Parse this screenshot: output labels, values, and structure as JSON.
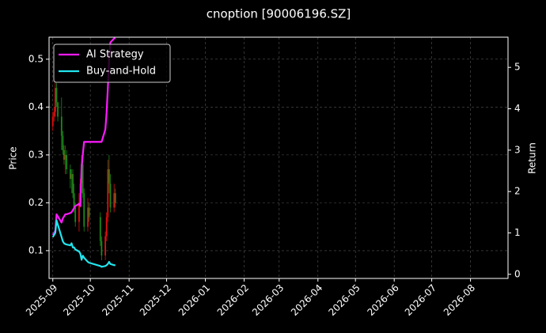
{
  "chart_data": {
    "type": "candlestick",
    "title": "cnoption [90006196.SZ]",
    "ylabel": "Price",
    "y2label": "Return",
    "x": [
      "2025-09-01",
      "2025-09-02",
      "2025-09-03",
      "2025-09-04",
      "2025-09-05",
      "2025-09-08",
      "2025-09-09",
      "2025-09-10",
      "2025-09-11",
      "2025-09-12",
      "2025-09-15",
      "2025-09-16",
      "2025-09-17",
      "2025-09-18",
      "2025-09-19",
      "2025-09-22",
      "2025-09-23",
      "2025-09-24",
      "2025-09-25",
      "2025-09-26",
      "2025-09-29",
      "2025-09-30",
      "2025-10-09",
      "2025-10-10",
      "2025-10-13",
      "2025-10-14",
      "2025-10-15",
      "2025-10-16",
      "2025-10-17",
      "2025-10-20",
      "2025-10-21"
    ],
    "open": [
      0.36,
      0.38,
      0.39,
      0.44,
      0.41,
      0.38,
      0.34,
      0.31,
      0.29,
      0.3,
      0.27,
      0.25,
      0.26,
      0.22,
      0.19,
      0.16,
      0.2,
      0.24,
      0.28,
      0.22,
      0.15,
      0.19,
      0.17,
      0.12,
      0.09,
      0.13,
      0.17,
      0.27,
      0.24,
      0.19,
      0.22
    ],
    "high": [
      0.39,
      0.4,
      0.46,
      0.45,
      0.41,
      0.42,
      0.35,
      0.32,
      0.32,
      0.31,
      0.28,
      0.27,
      0.27,
      0.24,
      0.2,
      0.22,
      0.25,
      0.3,
      0.29,
      0.23,
      0.21,
      0.2,
      0.18,
      0.13,
      0.14,
      0.18,
      0.29,
      0.3,
      0.26,
      0.24,
      0.23
    ],
    "low": [
      0.35,
      0.37,
      0.38,
      0.4,
      0.37,
      0.31,
      0.3,
      0.28,
      0.26,
      0.26,
      0.23,
      0.22,
      0.21,
      0.18,
      0.15,
      0.14,
      0.19,
      0.22,
      0.21,
      0.14,
      0.14,
      0.16,
      0.11,
      0.08,
      0.08,
      0.12,
      0.16,
      0.22,
      0.18,
      0.18,
      0.19
    ],
    "close": [
      0.38,
      0.39,
      0.44,
      0.41,
      0.38,
      0.34,
      0.31,
      0.29,
      0.3,
      0.27,
      0.25,
      0.26,
      0.22,
      0.19,
      0.16,
      0.2,
      0.24,
      0.28,
      0.22,
      0.15,
      0.19,
      0.17,
      0.12,
      0.09,
      0.13,
      0.17,
      0.27,
      0.24,
      0.19,
      0.22,
      0.2
    ],
    "up_color": "#e01010",
    "down_color": "#1a8a1a",
    "series": [
      {
        "name": "AI Strategy",
        "color": "#ff1aff",
        "axis": "y2",
        "values": [
          0.95,
          1.0,
          1.05,
          1.45,
          1.4,
          1.25,
          1.35,
          1.4,
          1.45,
          1.45,
          1.48,
          1.5,
          1.55,
          1.6,
          1.65,
          1.7,
          1.65,
          2.6,
          2.9,
          3.2,
          3.2,
          3.2,
          3.2,
          3.2,
          3.5,
          3.9,
          4.5,
          5.2,
          5.6,
          5.7,
          5.7
        ]
      },
      {
        "name": "Buy-and-Hold",
        "color": "#22e5ee",
        "axis": "y2",
        "values": [
          0.9,
          0.95,
          1.0,
          1.3,
          1.2,
          0.9,
          0.8,
          0.75,
          0.73,
          0.72,
          0.7,
          0.75,
          0.65,
          0.65,
          0.6,
          0.55,
          0.5,
          0.35,
          0.45,
          0.4,
          0.3,
          0.28,
          0.2,
          0.18,
          0.2,
          0.22,
          0.25,
          0.3,
          0.25,
          0.22,
          0.22
        ]
      }
    ],
    "xlim": [
      "2025-08-29",
      "2026-08-31"
    ],
    "xticks": [
      "2025-09",
      "2025-10",
      "2025-11",
      "2025-12",
      "2026-01",
      "2026-02",
      "2026-03",
      "2026-04",
      "2026-05",
      "2026-06",
      "2026-07",
      "2026-08"
    ],
    "ylim": [
      0.042,
      0.546
    ],
    "yticks": [
      0.1,
      0.2,
      0.3,
      0.4,
      0.5
    ],
    "y2lim": [
      -0.1,
      5.73
    ],
    "y2ticks": [
      0,
      1,
      2,
      3,
      4,
      5
    ],
    "grid": true,
    "legend": "upper left"
  }
}
